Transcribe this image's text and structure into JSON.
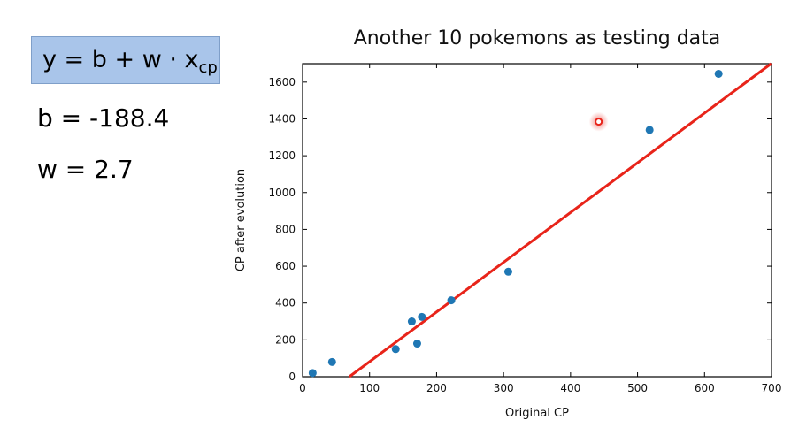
{
  "formula": {
    "main": "y = b + w · x",
    "subscript": "cp",
    "b_label": "b = -188.4",
    "w_label": "w = 2.7"
  },
  "chart_data": {
    "type": "scatter",
    "title": "Another 10 pokemons as testing data",
    "xlabel": "Original CP",
    "ylabel": "CP after evolution",
    "xlim": [
      0,
      700
    ],
    "ylim": [
      0,
      1700
    ],
    "xticks": [
      0,
      100,
      200,
      300,
      400,
      500,
      600,
      700
    ],
    "yticks": [
      0,
      200,
      400,
      600,
      800,
      1000,
      1200,
      1400,
      1600
    ],
    "grid": false,
    "points": [
      {
        "x": 15,
        "y": 20
      },
      {
        "x": 44,
        "y": 80
      },
      {
        "x": 139,
        "y": 150
      },
      {
        "x": 163,
        "y": 300
      },
      {
        "x": 171,
        "y": 180
      },
      {
        "x": 178,
        "y": 325
      },
      {
        "x": 222,
        "y": 415
      },
      {
        "x": 307,
        "y": 570
      },
      {
        "x": 518,
        "y": 1340
      },
      {
        "x": 621,
        "y": 1645
      }
    ],
    "highlighted_point": {
      "x": 442,
      "y": 1385
    },
    "fit_line": {
      "b": -188.4,
      "w": 2.7
    },
    "point_color": "#1f77b4",
    "line_color": "#e8241a",
    "highlight_color": "#e8241a"
  }
}
